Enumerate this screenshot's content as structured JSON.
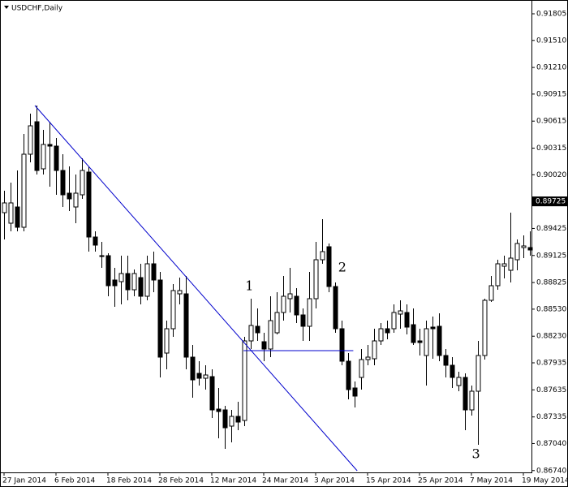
{
  "chart_data": {
    "type": "candlestick",
    "title": "USDCHF,Daily",
    "categories": [
      "27 Jan 2014",
      null,
      null,
      null,
      null,
      null,
      null,
      null,
      "6 Feb 2014",
      null,
      null,
      null,
      null,
      null,
      null,
      null,
      "18 Feb 2014",
      null,
      null,
      null,
      null,
      null,
      null,
      null,
      "28 Feb 2014",
      null,
      null,
      null,
      null,
      null,
      null,
      null,
      "12 Mar 2014",
      null,
      null,
      null,
      null,
      null,
      null,
      null,
      "24 Mar 2014",
      null,
      null,
      null,
      null,
      null,
      null,
      null,
      "3 Apr 2014",
      null,
      null,
      null,
      null,
      null,
      null,
      null,
      "15 Apr 2014",
      null,
      null,
      null,
      null,
      null,
      null,
      null,
      "25 Apr 2014",
      null,
      null,
      null,
      null,
      null,
      null,
      null,
      "7 May 2014",
      null,
      null,
      null,
      null,
      null,
      null,
      null,
      "19 May 2014",
      null
    ],
    "open": [
      0.896,
      0.89483,
      0.89663,
      0.89438,
      0.90248,
      0.90608,
      0.90086,
      0.90356,
      0.90338,
      0.90068,
      0.89816,
      0.89663,
      0.89798,
      0.9005,
      0.8933,
      0.89123,
      0.89123,
      0.88853,
      0.88835,
      0.88925,
      0.88745,
      0.8888,
      0.88673,
      0.89033,
      0.88853,
      0.88043,
      0.88313,
      0.887,
      0.887,
      0.87998,
      0.87818,
      0.87764,
      0.87782,
      0.87422,
      0.87413,
      0.87233,
      0.87341,
      0.87296,
      0.88178,
      0.8834,
      0.88169,
      0.88088,
      0.88268,
      0.88493,
      0.88646,
      0.88673,
      0.88466,
      0.8834,
      0.88646,
      0.89078,
      0.89222,
      0.88781,
      0.88313,
      0.87953,
      0.87656,
      0.87773,
      0.87971,
      0.8798,
      0.88178,
      0.88313,
      0.88313,
      0.88475,
      0.88493,
      0.88358,
      0.88178,
      0.88016,
      0.88331,
      0.8834,
      0.88016,
      0.87908,
      0.87683,
      0.87773,
      0.87413,
      0.8762,
      0.88016,
      0.88628,
      0.8879,
      0.89006,
      0.88961,
      0.89078,
      0.89213,
      0.89213
    ],
    "high": [
      0.89843,
      0.89933,
      0.90068,
      0.90473,
      0.90698,
      0.90788,
      0.90518,
      0.90608,
      0.90428,
      0.90248,
      0.90113,
      0.90023,
      0.90203,
      0.90113,
      0.89393,
      0.89276,
      0.8915,
      0.88988,
      0.89123,
      0.89123,
      0.8897,
      0.89033,
      0.89123,
      0.89168,
      0.88943,
      0.88403,
      0.88808,
      0.8888,
      0.88898,
      0.88133,
      0.87953,
      0.87908,
      0.87863,
      0.87656,
      0.87458,
      0.87413,
      0.87503,
      0.88223,
      0.88646,
      0.88538,
      0.88268,
      0.88673,
      0.88718,
      0.88898,
      0.88988,
      0.88763,
      0.88538,
      0.88943,
      0.89276,
      0.89528,
      0.89258,
      0.88826,
      0.88403,
      0.88043,
      0.87728,
      0.88088,
      0.88133,
      0.88313,
      0.88376,
      0.88403,
      0.88583,
      0.88628,
      0.88583,
      0.88538,
      0.88313,
      0.88403,
      0.88448,
      0.88484,
      0.88088,
      0.87998,
      0.87836,
      0.87818,
      0.87683,
      0.88178,
      0.88646,
      0.88898,
      0.89078,
      0.89123,
      0.896,
      0.89303,
      0.89348,
      0.89393
    ],
    "low": [
      0.89303,
      0.89393,
      0.89393,
      0.89393,
      0.90158,
      0.90023,
      0.90023,
      0.89888,
      0.89798,
      0.89663,
      0.89618,
      0.89483,
      0.89753,
      0.89168,
      0.89168,
      0.88988,
      0.88673,
      0.88556,
      0.88583,
      0.88628,
      0.88673,
      0.88583,
      0.88628,
      0.88718,
      0.87773,
      0.87863,
      0.88223,
      0.88583,
      0.87863,
      0.87548,
      0.87683,
      0.87638,
      0.87323,
      0.87098,
      0.86981,
      0.87053,
      0.87188,
      0.87233,
      0.88088,
      0.88178,
      0.87953,
      0.87998,
      0.8825,
      0.88403,
      0.88493,
      0.88376,
      0.88178,
      0.88178,
      0.88538,
      0.89033,
      0.88718,
      0.88268,
      0.87908,
      0.8753,
      0.8744,
      0.87638,
      0.87908,
      0.87908,
      0.88133,
      0.88196,
      0.88268,
      0.88313,
      0.8825,
      0.88133,
      0.88016,
      0.87683,
      0.8798,
      0.87953,
      0.87773,
      0.87656,
      0.8762,
      0.87188,
      0.8735,
      0.87026,
      0.87971,
      0.8861,
      0.88745,
      0.88871,
      0.88826,
      0.88961,
      0.89096,
      0.89123
    ],
    "close": [
      0.89708,
      0.89708,
      0.89438,
      0.90248,
      0.90563,
      0.90068,
      0.90356,
      0.90338,
      0.90068,
      0.89798,
      0.89753,
      0.89816,
      0.90068,
      0.8933,
      0.8924,
      0.89114,
      0.8879,
      0.8879,
      0.88925,
      0.88745,
      0.88925,
      0.88673,
      0.89033,
      0.88853,
      0.87998,
      0.88313,
      0.88736,
      0.88736,
      0.87998,
      0.87746,
      0.87764,
      0.878,
      0.87413,
      0.87395,
      0.87215,
      0.87341,
      0.87278,
      0.88178,
      0.88349,
      0.88268,
      0.88088,
      0.88403,
      0.88493,
      0.88673,
      0.887,
      0.88466,
      0.8834,
      0.88646,
      0.89078,
      0.89168,
      0.88781,
      0.88313,
      0.87953,
      0.87638,
      0.87566,
      0.87971,
      0.87998,
      0.88178,
      0.88313,
      0.88268,
      0.88493,
      0.88511,
      0.88331,
      0.8816,
      0.8816,
      0.88313,
      0.88313,
      0.88016,
      0.87908,
      0.87773,
      0.87773,
      0.87413,
      0.8762,
      0.88016,
      0.88628,
      0.8879,
      0.89033,
      0.89033,
      0.89096,
      0.89258,
      0.89231,
      0.89186
    ],
    "up_color": "#ffffff",
    "down_color": "#000000",
    "wick_color": "#000000",
    "ylim": [
      0.8672,
      0.91958
    ],
    "yticks": [
      0.91805,
      {
        "value": 0.9151,
        "label": "0.91510"
      },
      {
        "value": 0.9121,
        "label": "0.91210"
      },
      0.90915,
      0.90615,
      0.90315,
      {
        "value": 0.9002,
        "label": "0.90020"
      },
      0.89425,
      0.89125,
      0.88825,
      {
        "value": 0.8853,
        "label": "0.88530"
      },
      {
        "value": 0.8823,
        "label": "0.88230"
      },
      0.87935,
      0.87635,
      0.87335,
      {
        "value": 0.8704,
        "label": "0.87040"
      },
      {
        "value": 0.8674,
        "label": "0.86740"
      }
    ],
    "price_marker": 0.89725,
    "grid": false,
    "trendlines": [
      {
        "x": [
          4.75,
          54.4
        ],
        "y": [
          0.90788,
          0.86738
        ],
        "color": "#0000cc"
      },
      {
        "x": [
          36.9,
          53.8
        ],
        "y": [
          0.8807,
          0.8807
        ],
        "color": "#0000cc"
      }
    ],
    "annotations": [
      {
        "text": "1",
        "x": 37.8,
        "y": 0.8878
      },
      {
        "text": "2",
        "x": 52.1,
        "y": 0.8899
      },
      {
        "text": "3",
        "x": 72.7,
        "y": 0.8692
      }
    ]
  }
}
